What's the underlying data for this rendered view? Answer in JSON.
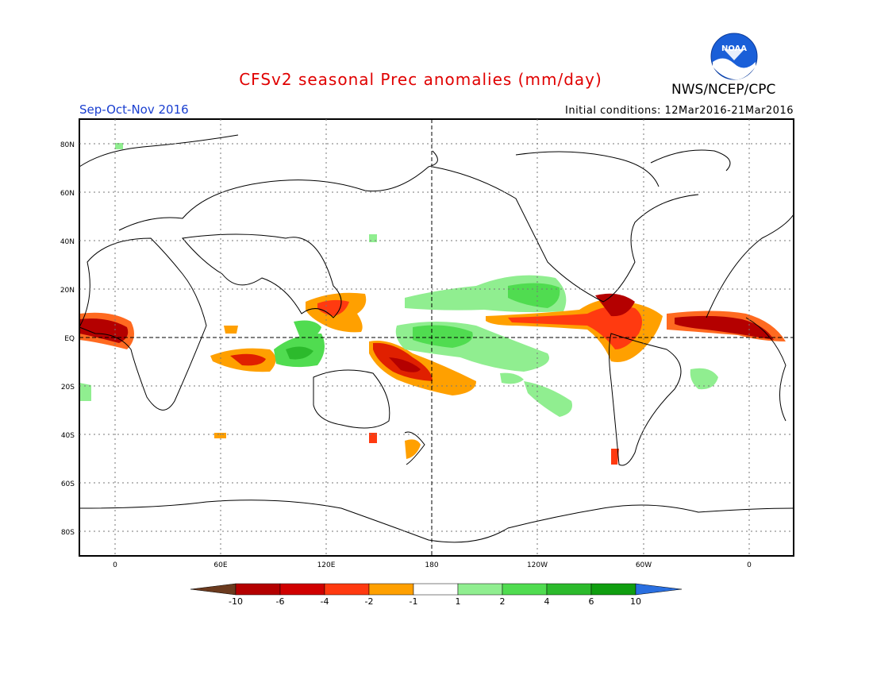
{
  "title": "CFSv2 seasonal Prec anomalies (mm/day)",
  "agency": "NWS/NCEP/CPC",
  "season": "Sep-Oct-Nov 2016",
  "initial_conditions": "Initial conditions: 12Mar2016-21Mar2016",
  "logo_text": "NOAA",
  "lat_labels": [
    "80N",
    "60N",
    "40N",
    "20N",
    "EQ",
    "20S",
    "40S",
    "60S",
    "80S"
  ],
  "lon_labels": [
    "0",
    "60E",
    "120E",
    "180",
    "120W",
    "60W",
    "0"
  ],
  "colorbar": {
    "labels": [
      "-10",
      "-6",
      "-4",
      "-2",
      "-1",
      "1",
      "2",
      "4",
      "6",
      "10"
    ],
    "colors": [
      "#6b3a1e",
      "#b40000",
      "#d00000",
      "#ff3a10",
      "#ffa000",
      "#ffffff",
      "#90ee90",
      "#50dc50",
      "#2cba2c",
      "#109e10",
      "#2a6fe0"
    ]
  },
  "anomaly_colors": {
    "dry_strong": "#b40000",
    "dry_mid": "#e02000",
    "dry_light": "#ff6a20",
    "dry_weak": "#ffa000",
    "wet_weak": "#90ee90",
    "wet_mid": "#50dc50",
    "wet_strong": "#2cba2c"
  }
}
